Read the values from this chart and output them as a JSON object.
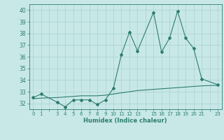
{
  "x": [
    0,
    1,
    3,
    4,
    5,
    6,
    7,
    8,
    9,
    10,
    11,
    12,
    13,
    15,
    16,
    17,
    18,
    19,
    20,
    21,
    23
  ],
  "y_humidex": [
    32.5,
    32.8,
    32.1,
    31.7,
    32.3,
    32.3,
    32.3,
    31.9,
    32.3,
    33.3,
    36.2,
    38.1,
    36.5,
    39.8,
    36.4,
    37.6,
    39.9,
    37.6,
    36.7,
    34.1,
    33.6
  ],
  "y_baseline": [
    32.4,
    32.45,
    32.5,
    32.55,
    32.6,
    32.65,
    32.65,
    32.65,
    32.7,
    32.8,
    32.9,
    33.0,
    33.1,
    33.2,
    33.25,
    33.3,
    33.35,
    33.4,
    33.45,
    33.5,
    33.55
  ],
  "line_color": "#2E7D70",
  "bg_color": "#C8E8E8",
  "grid_color": "#AACFCF",
  "xlabel": "Humidex (Indice chaleur)",
  "ylim": [
    31.5,
    40.5
  ],
  "xlim": [
    -0.5,
    23.5
  ],
  "yticks": [
    32,
    33,
    34,
    35,
    36,
    37,
    38,
    39,
    40
  ],
  "xtick_labels": [
    "0",
    "1",
    "",
    "3",
    "4",
    "5",
    "6",
    "7",
    "8",
    "9",
    "10",
    "11",
    "12",
    "13",
    "",
    "15",
    "16",
    "17",
    "18",
    "19",
    "20",
    "21",
    "",
    "23"
  ],
  "xtick_positions": [
    0,
    1,
    2,
    3,
    4,
    5,
    6,
    7,
    8,
    9,
    10,
    11,
    12,
    13,
    14,
    15,
    16,
    17,
    18,
    19,
    20,
    21,
    22,
    23
  ]
}
